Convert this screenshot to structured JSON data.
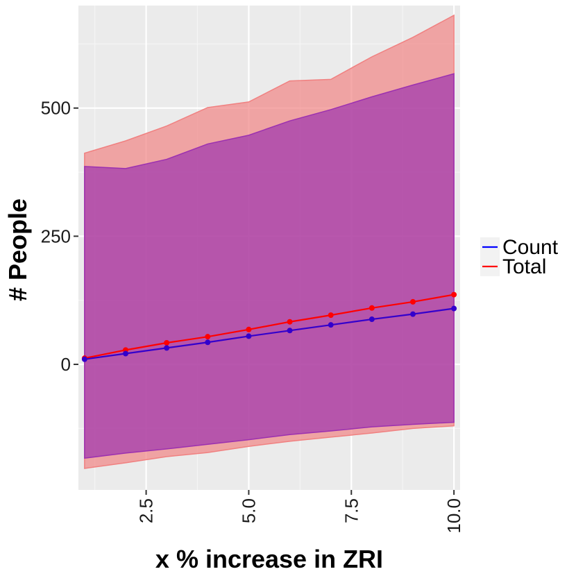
{
  "chart_data": {
    "type": "line",
    "title": "",
    "xlabel": "x % increase in ZRI",
    "ylabel": "# People",
    "xlim": [
      0.85,
      10.15
    ],
    "ylim": [
      -245,
      700
    ],
    "x_ticks": [
      2.5,
      5.0,
      7.5,
      10.0
    ],
    "x_tick_labels": [
      "2.5",
      "5.0",
      "7.5",
      "10.0"
    ],
    "y_ticks": [
      0,
      250,
      500
    ],
    "y_tick_labels": [
      "0",
      "250",
      "500"
    ],
    "grid": true,
    "legend": {
      "position": "right",
      "entries": [
        "Count",
        "Total"
      ]
    },
    "x": [
      1,
      2,
      3,
      4,
      5,
      6,
      7,
      8,
      9,
      10
    ],
    "series": [
      {
        "name": "Count",
        "color": "#3300cc",
        "legend_color": "#0000ff",
        "band_color": "#9b30b0",
        "values": [
          10,
          21,
          32,
          43,
          55,
          66,
          77,
          88,
          98,
          109
        ],
        "upper": [
          386,
          382,
          400,
          430,
          447,
          475,
          497,
          522,
          545,
          567
        ],
        "lower": [
          -183,
          -173,
          -165,
          -156,
          -147,
          -137,
          -130,
          -122,
          -117,
          -113
        ]
      },
      {
        "name": "Total",
        "color": "#ff0000",
        "legend_color": "#ff0000",
        "band_color": "#f08080",
        "values": [
          12,
          28,
          42,
          54,
          68,
          83,
          96,
          110,
          122,
          136
        ],
        "upper": [
          412,
          436,
          465,
          501,
          512,
          553,
          556,
          600,
          638,
          681
        ],
        "lower": [
          -203,
          -192,
          -180,
          -172,
          -160,
          -150,
          -142,
          -134,
          -125,
          -120
        ]
      }
    ]
  }
}
